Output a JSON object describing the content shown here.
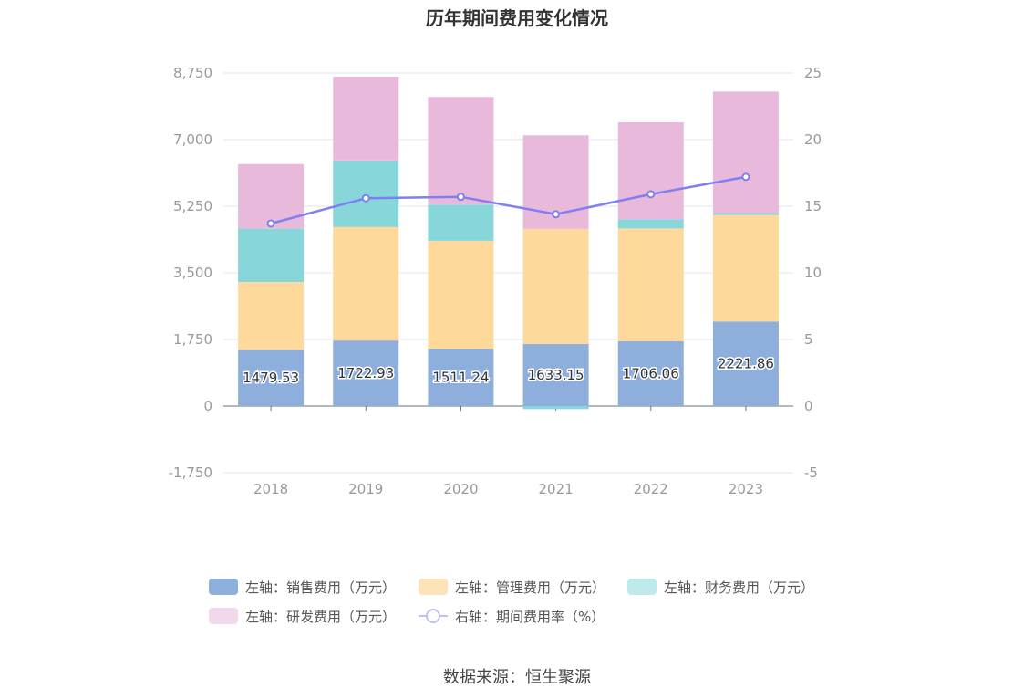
{
  "chart_data": {
    "type": "bar",
    "title": "历年期间费用变化情况",
    "categories": [
      "2018",
      "2019",
      "2020",
      "2021",
      "2022",
      "2023"
    ],
    "stacked": true,
    "left_axis": {
      "ylim": [
        -1750,
        8750
      ],
      "ticks": [
        -1750,
        0,
        1750,
        3500,
        5250,
        7000,
        8750
      ],
      "tick_labels": [
        "-1,750",
        "0",
        "1,750",
        "3,500",
        "5,250",
        "7,000",
        "8,750"
      ]
    },
    "right_axis": {
      "ylim": [
        -5,
        25
      ],
      "ticks": [
        -5,
        0,
        5,
        10,
        15,
        20,
        25
      ],
      "tick_labels": [
        "-5",
        "0",
        "5",
        "10",
        "15",
        "20",
        "25"
      ]
    },
    "series": [
      {
        "name": "左轴：销售费用（万元）",
        "type": "bar",
        "axis": "left",
        "color": "#8eaedb",
        "values": [
          1479.53,
          1722.93,
          1511.24,
          1633.15,
          1706.06,
          2221.86
        ],
        "data_labels": [
          "1479.53",
          "1722.93",
          "1511.24",
          "1633.15",
          "1706.06",
          "2221.86"
        ]
      },
      {
        "name": "左轴：管理费用（万元）",
        "type": "bar",
        "axis": "left",
        "color": "#fed99b",
        "values": [
          1780,
          2980,
          2830,
          3020,
          2960,
          2800
        ]
      },
      {
        "name": "左轴：财务费用（万元）",
        "type": "bar",
        "axis": "left",
        "color": "#86d6da",
        "values": [
          1400,
          1750,
          950,
          -80,
          240,
          50
        ]
      },
      {
        "name": "左轴：研发费用（万元）",
        "type": "bar",
        "axis": "left",
        "color": "#e8b9db",
        "values": [
          1700,
          2200,
          2830,
          2460,
          2550,
          3190
        ]
      },
      {
        "name": "右轴：期间费用率（%）",
        "type": "line",
        "axis": "right",
        "color": "#7f80f0",
        "values": [
          13.7,
          15.6,
          15.7,
          14.4,
          15.9,
          17.2
        ]
      }
    ],
    "legend_position": "bottom",
    "grid": true
  },
  "legend": {
    "items": [
      {
        "label": "左轴：销售费用（万元）",
        "color": "#8eaedb"
      },
      {
        "label": "左轴：管理费用（万元）",
        "color": "#fee3b8"
      },
      {
        "label": "左轴：财务费用（万元）",
        "color": "#bfe9eb"
      },
      {
        "label": "左轴：研发费用（万元）",
        "color": "#f2d8ec"
      },
      {
        "label": "右轴：期间费用率（%）",
        "color": "#bfc1f5"
      }
    ]
  },
  "footer": {
    "source": "数据来源：恒生聚源"
  }
}
